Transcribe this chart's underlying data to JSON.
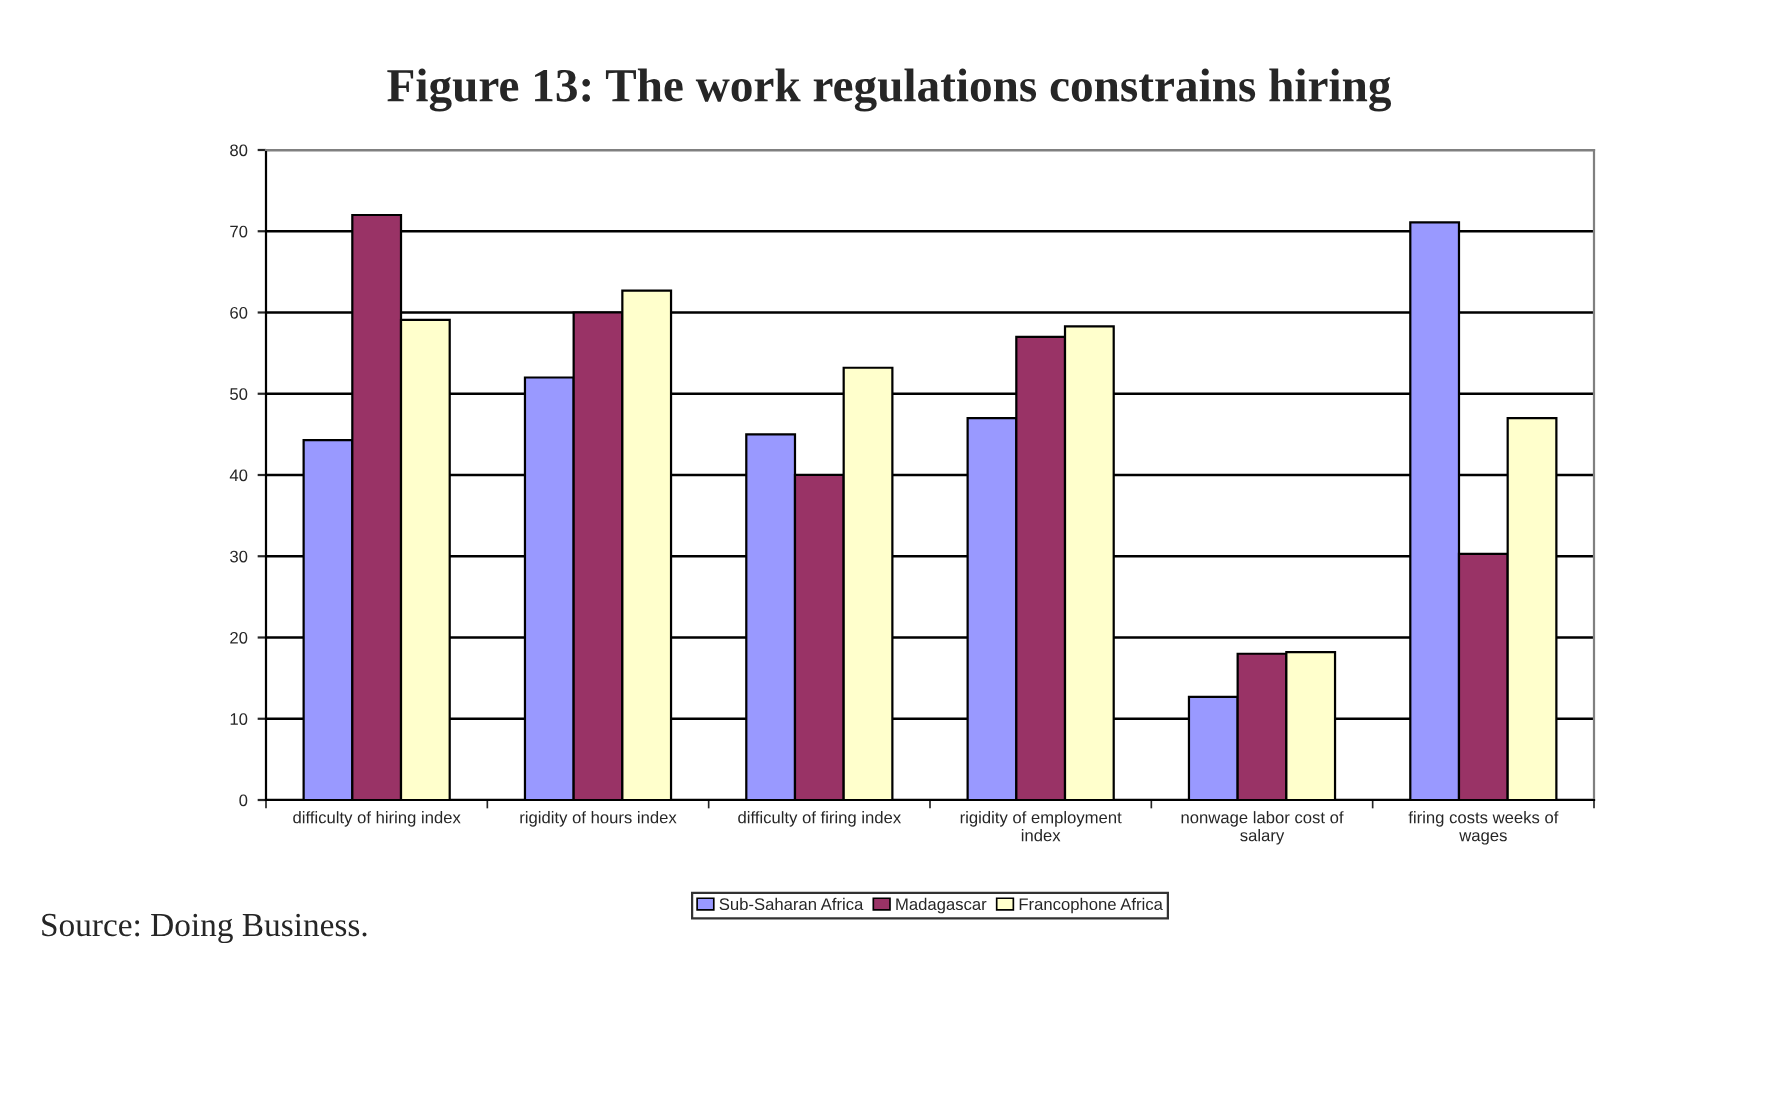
{
  "chart_data": {
    "type": "bar",
    "title": "Figure 13: The work regulations constrains hiring",
    "categories": [
      "difficulty of hiring index",
      "rigidity of hours index",
      "difficulty of firing index",
      "rigidity of employment\nindex",
      "nonwage labor cost of\nsalary",
      "firing costs weeks of\nwages"
    ],
    "series": [
      {
        "name": "Sub-Saharan Africa",
        "color": "#9999ff",
        "values": [
          44.3,
          52,
          45,
          47,
          12.7,
          71.1
        ]
      },
      {
        "name": "Madagascar",
        "color": "#993366",
        "values": [
          72,
          60,
          40,
          57,
          18,
          30.3
        ]
      },
      {
        "name": "Francophone Africa",
        "color": "#ffffcc",
        "values": [
          59.1,
          62.7,
          53.2,
          58.3,
          18.2,
          47
        ]
      }
    ],
    "ylim": [
      0,
      80
    ],
    "yticks": [
      0,
      10,
      20,
      30,
      40,
      50,
      60,
      70,
      80
    ],
    "grid": "y",
    "legend": "bottom",
    "annotations": [
      "Source: Doing Business."
    ]
  }
}
